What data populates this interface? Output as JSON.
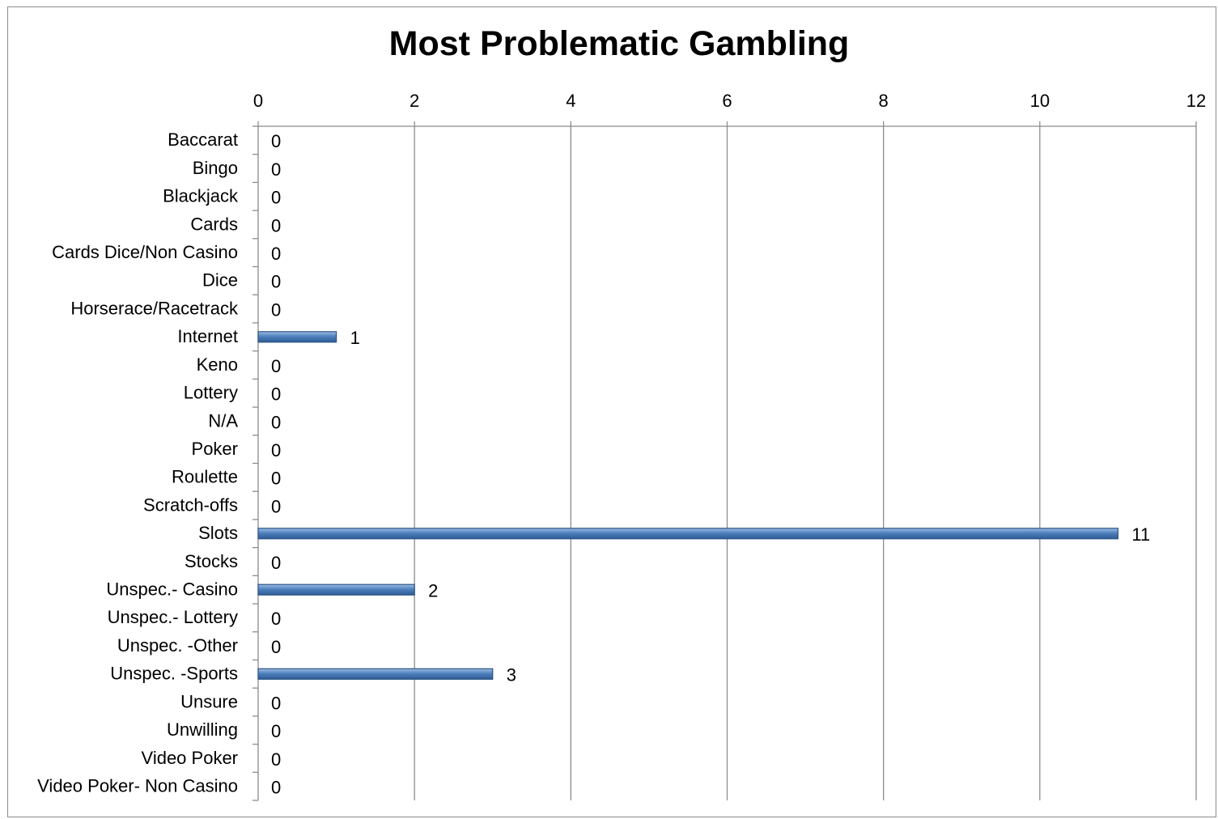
{
  "chart_data": {
    "type": "bar",
    "orientation": "horizontal",
    "title": "Most Problematic Gambling",
    "xlabel": "",
    "ylabel": "",
    "xlim": [
      0,
      12
    ],
    "x_ticks": [
      0,
      2,
      4,
      6,
      8,
      10,
      12
    ],
    "x_axis_position": "top",
    "grid": true,
    "legend": "none",
    "bar_color": "#4f81bd",
    "categories": [
      "Baccarat",
      "Bingo",
      "Blackjack",
      "Cards",
      "Cards Dice/Non Casino",
      "Dice",
      "Horserace/Racetrack",
      "Internet",
      "Keno",
      "Lottery",
      "N/A",
      "Poker",
      "Roulette",
      "Scratch-offs",
      "Slots",
      "Stocks",
      "Unspec.- Casino",
      "Unspec.- Lottery",
      "Unspec. -Other",
      "Unspec. -Sports",
      "Unsure",
      "Unwilling",
      "Video Poker",
      "Video Poker- Non Casino"
    ],
    "values": [
      0,
      0,
      0,
      0,
      0,
      0,
      0,
      1,
      0,
      0,
      0,
      0,
      0,
      0,
      11,
      0,
      2,
      0,
      0,
      3,
      0,
      0,
      0,
      0
    ]
  }
}
